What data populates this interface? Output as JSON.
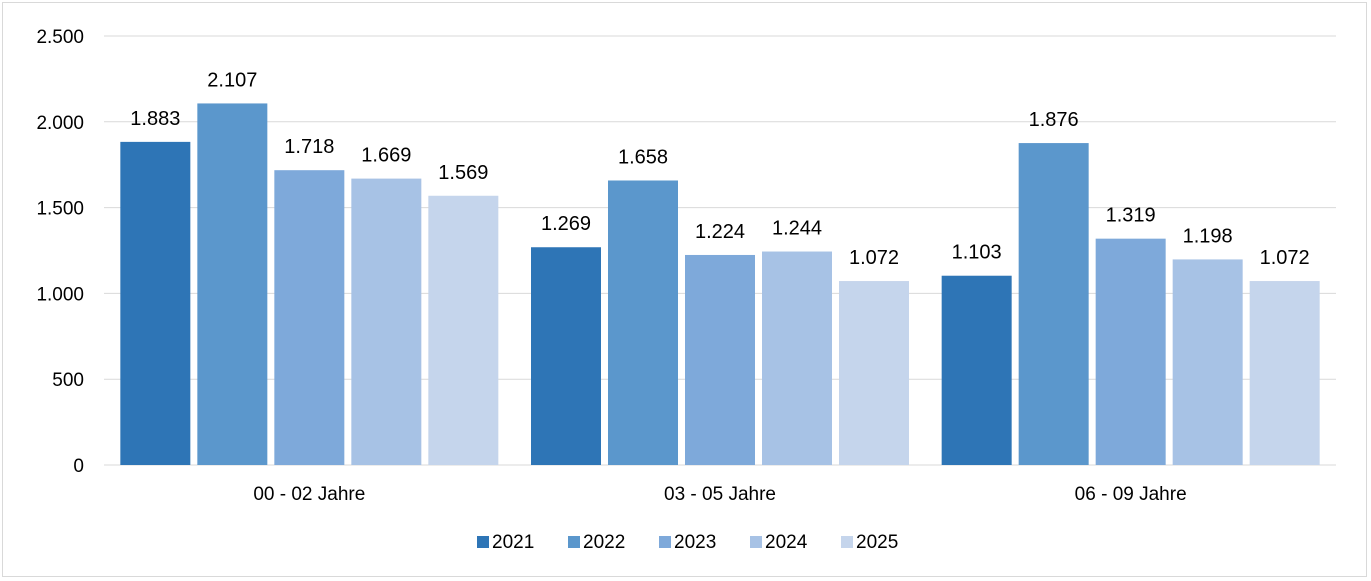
{
  "chart_data": {
    "type": "bar",
    "categories": [
      "00 - 02 Jahre",
      "03 - 05 Jahre",
      "06 - 09 Jahre"
    ],
    "series": [
      {
        "name": "2021",
        "values": [
          1883,
          1269,
          1103
        ],
        "labels": [
          "1.883",
          "1.269",
          "1.103"
        ],
        "color": "#2e75b6"
      },
      {
        "name": "2022",
        "values": [
          2107,
          1658,
          1876
        ],
        "labels": [
          "2.107",
          "1.658",
          "1.876"
        ],
        "color": "#5b97cc"
      },
      {
        "name": "2023",
        "values": [
          1718,
          1224,
          1319
        ],
        "labels": [
          "1.718",
          "1.224",
          "1.319"
        ],
        "color": "#7ea9da"
      },
      {
        "name": "2024",
        "values": [
          1669,
          1244,
          1198
        ],
        "labels": [
          "1.669",
          "1.244",
          "1.198"
        ],
        "color": "#a7c2e5"
      },
      {
        "name": "2025",
        "values": [
          1569,
          1072,
          1072
        ],
        "labels": [
          "1.569",
          "1.072",
          "1.072"
        ],
        "color": "#c5d5ec"
      }
    ],
    "yticks": [
      0,
      500,
      1000,
      1500,
      2000,
      2500
    ],
    "ytick_labels": [
      "0",
      "500",
      "1.000",
      "1.500",
      "2.000",
      "2.500"
    ],
    "ylim": [
      0,
      2500
    ],
    "grid": true,
    "legend_position": "bottom"
  }
}
